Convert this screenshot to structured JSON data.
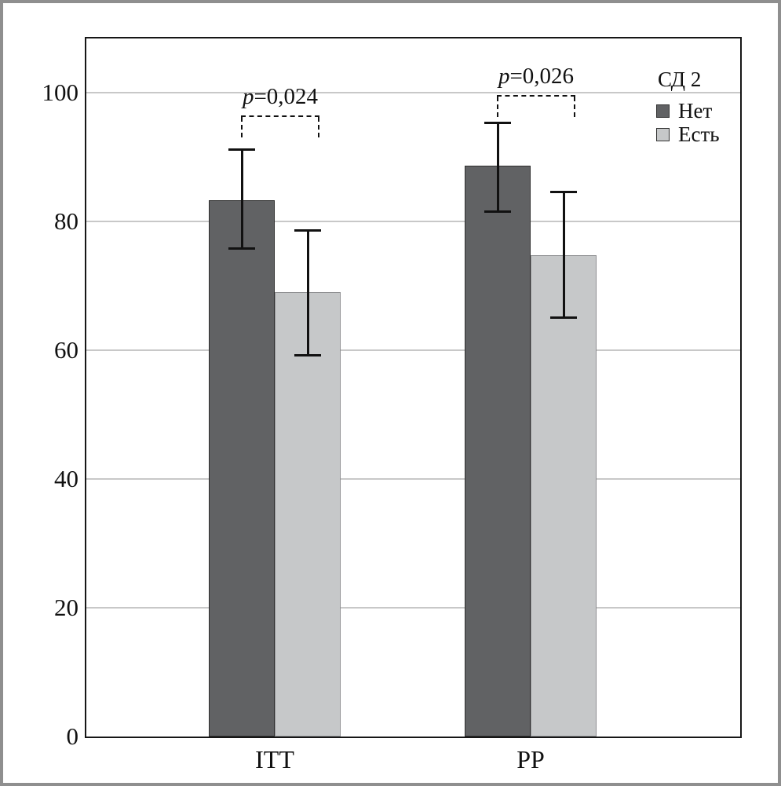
{
  "chart_data": {
    "type": "bar",
    "title": "",
    "categories": [
      "ITT",
      "PP"
    ],
    "series": [
      {
        "name": "Нет",
        "color": "#616264",
        "border_color": "#2e2e2e",
        "values": [
          83.3,
          88.6
        ],
        "error_low": [
          75.6,
          81.4
        ],
        "error_high": [
          91.3,
          95.5
        ]
      },
      {
        "name": "Есть",
        "color": "#c6c8c9",
        "border_color": "#8f9092",
        "values": [
          69.0,
          74.8
        ],
        "error_low": [
          59.0,
          64.9
        ],
        "error_high": [
          78.8,
          84.8
        ]
      }
    ],
    "legend": {
      "title": "СД 2",
      "position": "top-right-inside"
    },
    "annotations": [
      {
        "group": "ITT",
        "label": "p=0,024"
      },
      {
        "group": "PP",
        "label": "p=0,026"
      }
    ],
    "y_axis": {
      "ticks": [
        0,
        20,
        40,
        60,
        80,
        100
      ],
      "range": [
        0,
        108
      ],
      "gridlines": true
    },
    "x_axis": {
      "labels": [
        "ITT",
        "PP"
      ]
    }
  },
  "styles": {
    "grid_color": "#c8c8c8",
    "frame_color": "#161616",
    "outer_border_color": "#8f8f8f",
    "error_bar_color": "#111111",
    "annotation_color": "#111111"
  }
}
